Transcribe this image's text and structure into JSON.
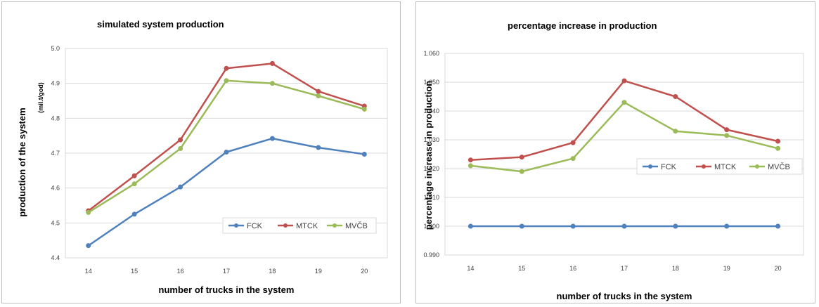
{
  "chart_data": [
    {
      "type": "line",
      "title": "simulated system production",
      "xlabel": "number of trucks in the system",
      "ylabel": "production of the system",
      "yunit": "(mil.t/god)",
      "categories": [
        "14",
        "15",
        "16",
        "17",
        "18",
        "19",
        "20"
      ],
      "ylim": [
        4.4,
        5.0
      ],
      "yticks": [
        "4.4",
        "4.5",
        "4.6",
        "4.7",
        "4.8",
        "4.9",
        "5.0"
      ],
      "grid": true,
      "legend_position": "lower-right",
      "series": [
        {
          "name": "FCK",
          "color": "#4f81bd",
          "values": [
            4.435,
            4.525,
            4.603,
            4.703,
            4.742,
            4.716,
            4.697
          ]
        },
        {
          "name": "MTCK",
          "color": "#c0504d",
          "values": [
            4.535,
            4.635,
            4.738,
            4.943,
            4.957,
            4.877,
            4.835
          ]
        },
        {
          "name": "MVČB",
          "color": "#9bbb59",
          "values": [
            4.53,
            4.612,
            4.713,
            4.908,
            4.9,
            4.864,
            4.826
          ]
        }
      ]
    },
    {
      "type": "line",
      "title": "percentage increase in production",
      "xlabel": "number of trucks in the system",
      "ylabel": "percentage increase in production",
      "categories": [
        "14",
        "15",
        "16",
        "17",
        "18",
        "19",
        "20"
      ],
      "ylim": [
        0.99,
        1.06
      ],
      "yticks": [
        "0.990",
        "1.000",
        "1.010",
        "1.020",
        "1.030",
        "1.040",
        "1.050",
        "1.060"
      ],
      "grid": true,
      "legend_position": "right",
      "series": [
        {
          "name": "FCK",
          "color": "#4f81bd",
          "values": [
            1.0,
            1.0,
            1.0,
            1.0,
            1.0,
            1.0,
            1.0
          ]
        },
        {
          "name": "MTCK",
          "color": "#c0504d",
          "values": [
            1.023,
            1.024,
            1.029,
            1.0505,
            1.045,
            1.0335,
            1.0295
          ]
        },
        {
          "name": "MVČB",
          "color": "#9bbb59",
          "values": [
            1.021,
            1.019,
            1.0235,
            1.043,
            1.033,
            1.0315,
            1.027
          ]
        }
      ]
    }
  ]
}
